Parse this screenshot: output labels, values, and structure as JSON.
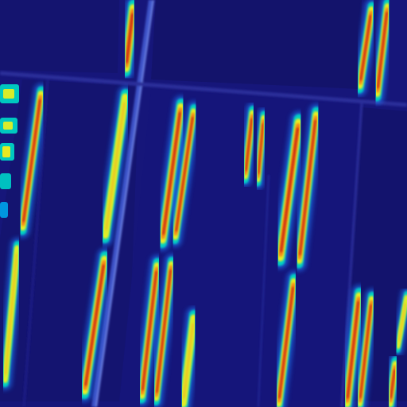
{
  "image": {
    "kind": "aerial-heatmap-overlay",
    "colormap": "jet",
    "colors": {
      "background_low": "#15157a",
      "field_dark": "#10105f",
      "road": "#3a4fc0",
      "mid": "#00d6c8",
      "high_yellow": "#f2ee1e",
      "high_orange": "#f58a16",
      "peak_red": "#c81e0a"
    }
  }
}
